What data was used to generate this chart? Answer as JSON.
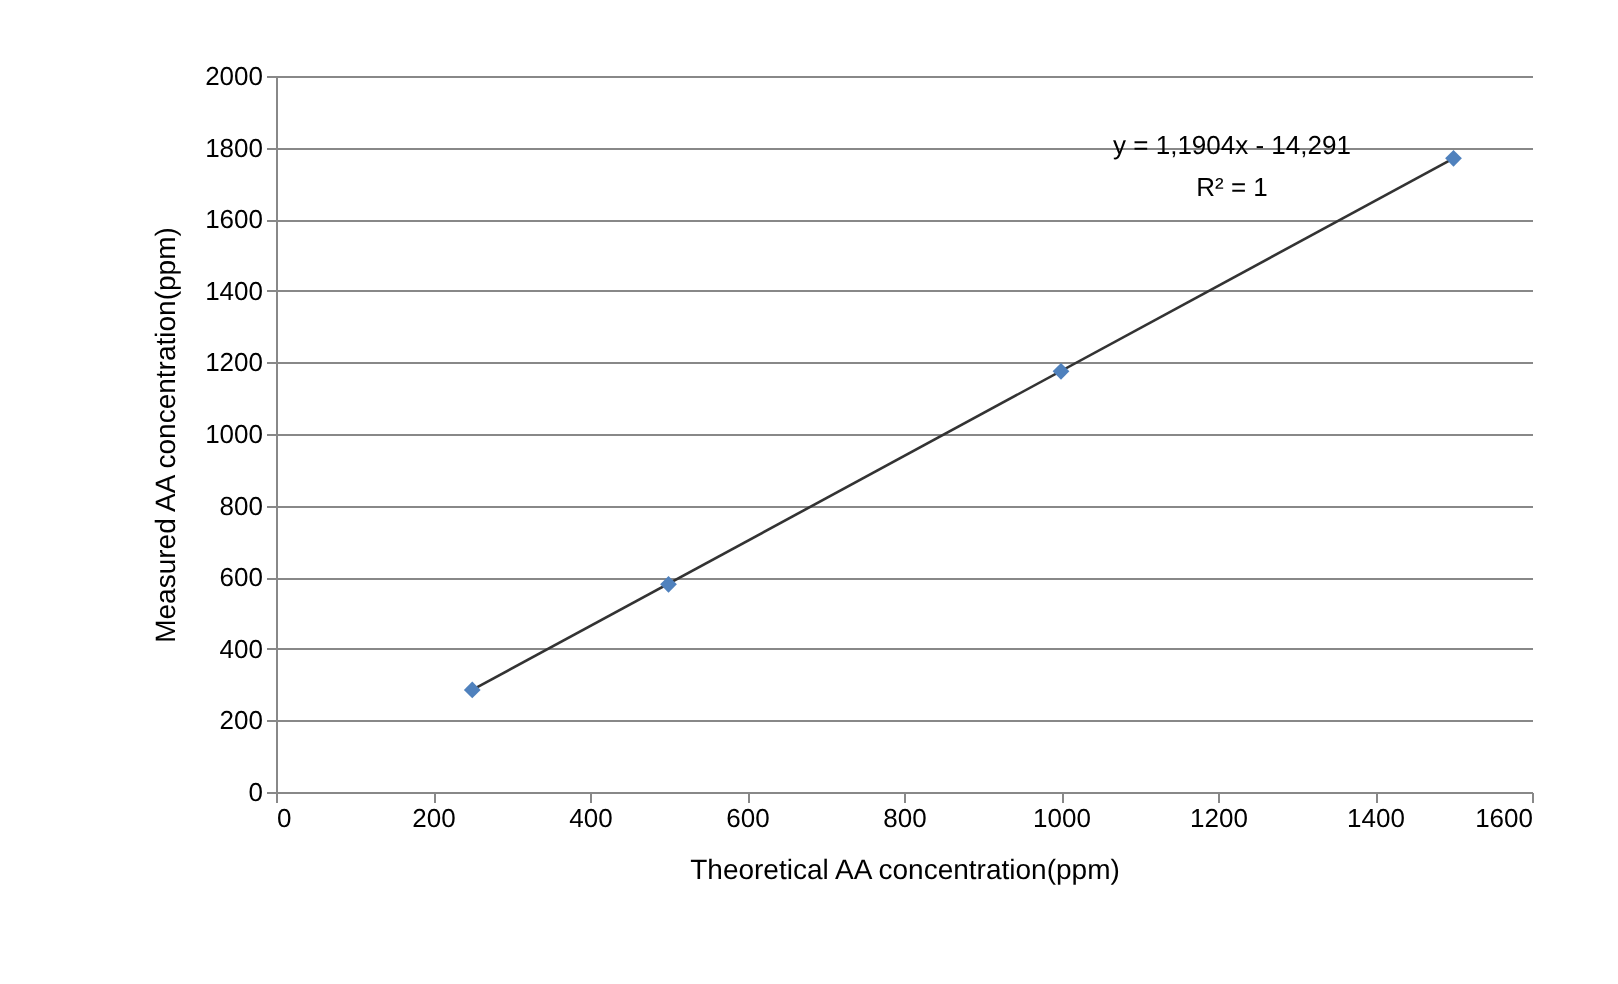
{
  "chart_data": {
    "type": "scatter",
    "xlabel": "Theoretical AA concentration(ppm)",
    "ylabel": "Measured AA concentration(ppm)",
    "xlim": [
      0,
      1600
    ],
    "xticks": [
      0,
      200,
      400,
      600,
      800,
      1000,
      1200,
      1400,
      1600
    ],
    "ylim": [
      0,
      2000
    ],
    "yticks": [
      0,
      200,
      400,
      600,
      800,
      1000,
      1200,
      1400,
      1600,
      1800,
      2000
    ],
    "grid": "y",
    "legend": false,
    "series": [
      {
        "type": "scatter",
        "color": "#4f81bd",
        "marker": "diamond",
        "x": [
          250,
          500,
          1000,
          1500
        ],
        "values": [
          285,
          580,
          1175,
          1770
        ]
      },
      {
        "type": "line",
        "color": "#333333",
        "line_style": "solid",
        "x": [
          250,
          1500
        ],
        "values": [
          285,
          1770
        ]
      }
    ],
    "annotations": [
      "y = 1,1904x - 14,291",
      "R² = 1"
    ]
  }
}
